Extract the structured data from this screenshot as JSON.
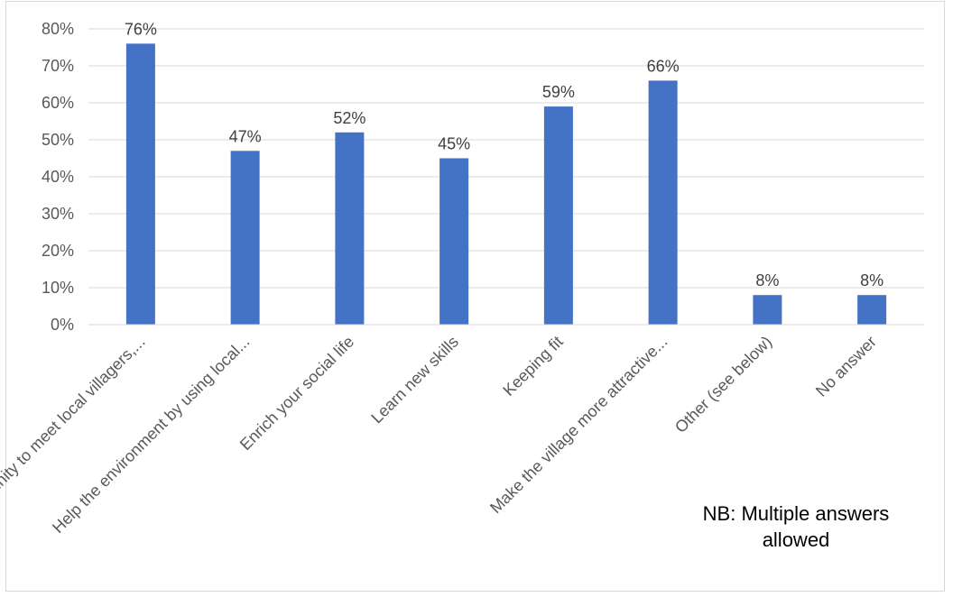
{
  "chart_data": {
    "type": "bar",
    "categories": [
      "Opportunity to meet local villagers,...",
      "Help the environment by using local...",
      "Enrich your social life",
      "Learn new skills",
      "Keeping fit",
      "Make the village more attractive...",
      "Other (see below)",
      "No answer"
    ],
    "values": [
      76,
      47,
      52,
      45,
      59,
      66,
      8,
      8
    ],
    "data_labels": [
      "76%",
      "47%",
      "52%",
      "45%",
      "59%",
      "66%",
      "8%",
      "8%"
    ],
    "ylim": [
      0,
      80
    ],
    "yticks": [
      0,
      10,
      20,
      30,
      40,
      50,
      60,
      70,
      80
    ],
    "ytick_labels": [
      "0%",
      "10%",
      "20%",
      "30%",
      "40%",
      "50%",
      "60%",
      "70%",
      "80%"
    ],
    "grid": true,
    "bar_color": "#4472c4",
    "annotation": "NB: Multiple answers allowed",
    "title": "",
    "xlabel": "",
    "ylabel": ""
  }
}
